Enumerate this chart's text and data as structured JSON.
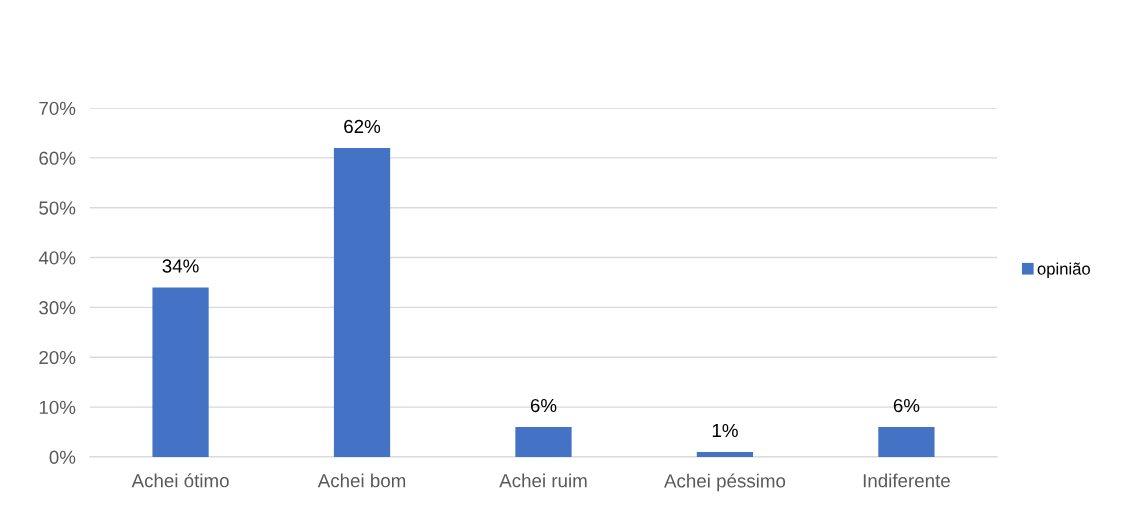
{
  "chart_data": {
    "type": "bar",
    "categories": [
      "Achei ótimo",
      "Achei bom",
      "Achei ruim",
      "Achei péssimo",
      "Indiferente"
    ],
    "series": [
      {
        "name": "opinião",
        "color": "#4472c4",
        "values": [
          34,
          62,
          6,
          1,
          6
        ]
      }
    ],
    "value_labels": [
      "34%",
      "62%",
      "6%",
      "1%",
      "6%"
    ],
    "ylim": [
      0,
      70
    ],
    "yticks": [
      {
        "value": 0,
        "label": "0%"
      },
      {
        "value": 10,
        "label": "10%"
      },
      {
        "value": 20,
        "label": "20%"
      },
      {
        "value": 30,
        "label": "30%"
      },
      {
        "value": 40,
        "label": "40%"
      },
      {
        "value": 50,
        "label": "50%"
      },
      {
        "value": 60,
        "label": "60%"
      },
      {
        "value": 70,
        "label": "70%"
      }
    ],
    "grid": "y",
    "legend": "right"
  }
}
